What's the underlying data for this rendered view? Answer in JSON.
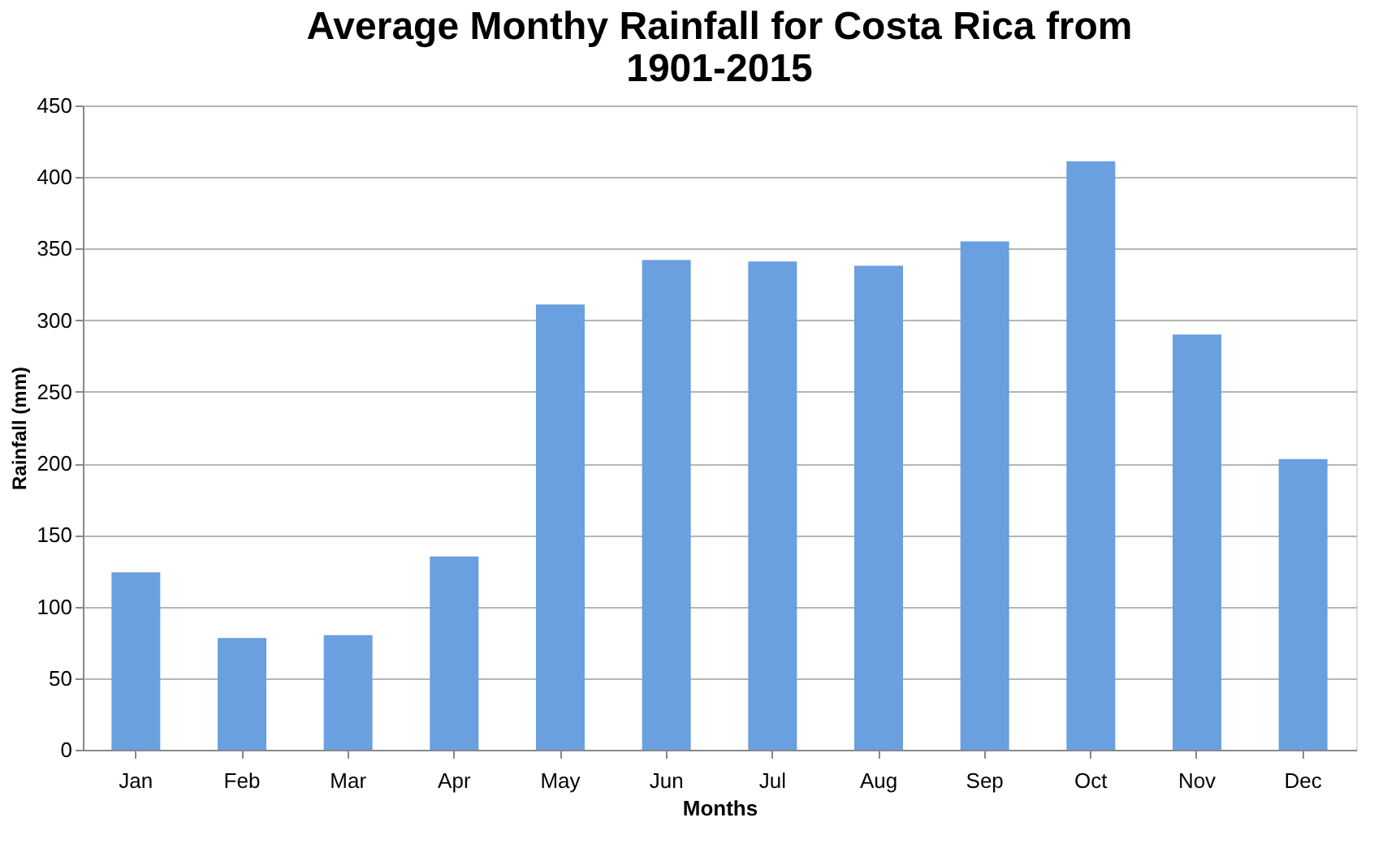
{
  "chart_data": {
    "type": "bar",
    "title": [
      "Average Monthy Rainfall for Costa Rica from",
      "1901-2015"
    ],
    "xlabel": "Months",
    "ylabel": "Rainfall (mm)",
    "categories": [
      "Jan",
      "Feb",
      "Mar",
      "Apr",
      "May",
      "Jun",
      "Jul",
      "Aug",
      "Sep",
      "Oct",
      "Nov",
      "Dec"
    ],
    "values": [
      124,
      78,
      80,
      135,
      311,
      342,
      341,
      338,
      355,
      411,
      290,
      203
    ],
    "color": "#6a9fe0",
    "ylim": [
      0,
      450
    ],
    "yticks": [
      0,
      50,
      100,
      150,
      200,
      250,
      300,
      350,
      400,
      450
    ],
    "grid": "y"
  }
}
